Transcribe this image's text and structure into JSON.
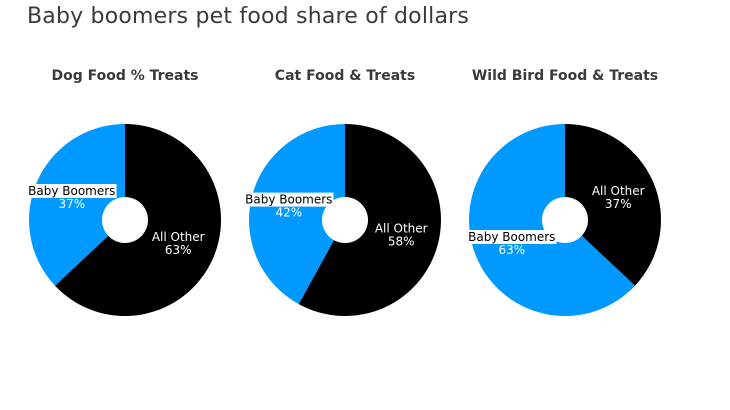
{
  "title": "Baby boomers pet food share of dollars",
  "colors": {
    "baby_boomers": "#0099ff",
    "all_other": "#000000",
    "hole": "#ffffff"
  },
  "chart_data": [
    {
      "type": "pie",
      "title": "Dog Food % Treats",
      "slices": [
        {
          "name": "All Other",
          "value": 63,
          "label": "63%"
        },
        {
          "name": "Baby Boomers",
          "value": 37,
          "label": "37%"
        }
      ]
    },
    {
      "type": "pie",
      "title": "Cat Food & Treats",
      "slices": [
        {
          "name": "All Other",
          "value": 58,
          "label": "58%"
        },
        {
          "name": "Baby Boomers",
          "value": 42,
          "label": "42%"
        }
      ]
    },
    {
      "type": "pie",
      "title": "Wild Bird Food & Treats",
      "slices": [
        {
          "name": "All Other",
          "value": 37,
          "label": "37%"
        },
        {
          "name": "Baby Boomers",
          "value": 63,
          "label": "63%"
        }
      ]
    }
  ]
}
